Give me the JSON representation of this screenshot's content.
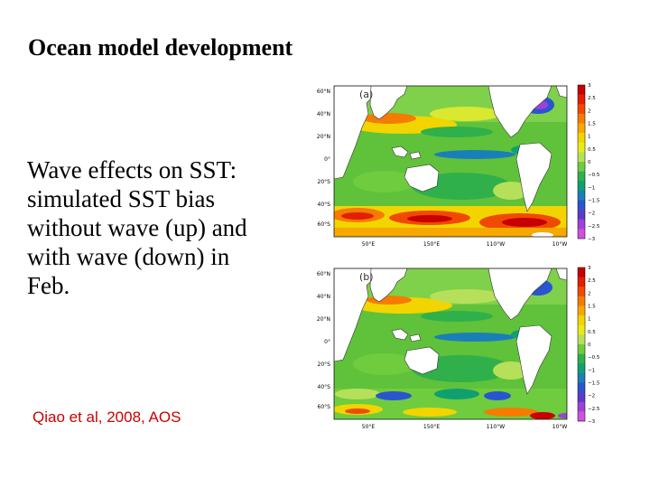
{
  "slide": {
    "title": "Ocean model development",
    "body_lines": [
      "Wave effects on SST:",
      "simulated SST bias",
      "without wave (up) and",
      "with wave (down) in",
      "Feb."
    ],
    "citation": "Qiao et al, 2008, AOS"
  },
  "maps": {
    "panels": [
      {
        "label": "(a)",
        "variant": "without-wave"
      },
      {
        "label": "(b)",
        "variant": "with-wave"
      }
    ],
    "lat_ticks": [
      "60°N",
      "40°N",
      "20°N",
      "0°",
      "20°S",
      "40°S",
      "60°S"
    ],
    "lon_ticks": [
      "50°E",
      "150°E",
      "110°W",
      "10°W"
    ],
    "colorbar_ticks": [
      "3",
      "2.5",
      "2",
      "1.5",
      "1",
      "0.5",
      "0",
      "−0.5",
      "−1",
      "−1.5",
      "−2",
      "−2.5",
      "−3"
    ],
    "colorbar_colors": [
      "#c80000",
      "#e21f00",
      "#f04a00",
      "#f57c00",
      "#f7a800",
      "#f2d500",
      "#e8ec14",
      "#b6e05a",
      "#6fcc3e",
      "#2fb04a",
      "#10a070",
      "#1a7fb8",
      "#2a55d0",
      "#5a3cc8",
      "#a040d8",
      "#d050e0"
    ]
  }
}
